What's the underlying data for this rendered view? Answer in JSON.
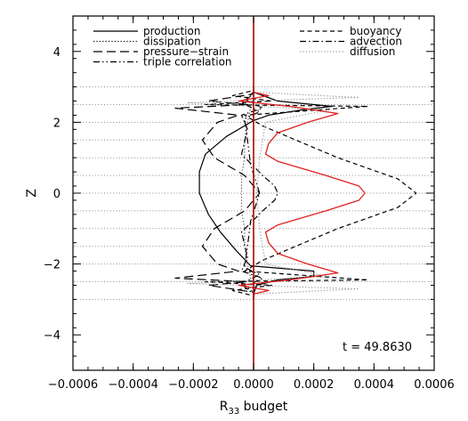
{
  "chart_data": {
    "type": "line",
    "title": "",
    "xlabel": "R",
    "xlabel_sub": "33",
    "xlabel_suffix": " budget",
    "ylabel": "Z",
    "xlim": [
      -0.0006,
      0.0006
    ],
    "ylim": [
      -5,
      5
    ],
    "x_ticks": [
      -0.0006,
      -0.0004,
      -0.0002,
      0.0,
      0.0002,
      0.0004,
      0.0006
    ],
    "x_tick_labels": [
      "−0.0006",
      "−0.0004",
      "−0.0002",
      "0.0000",
      "0.0002",
      "0.0004",
      "0.0006"
    ],
    "y_ticks": [
      -4,
      -2,
      0,
      2,
      4
    ],
    "y_tick_labels": [
      "−4",
      "−2",
      "0",
      "2",
      "4"
    ],
    "grid": "dotted horizontal reference lines at z = ±3, ±2.5, ±2, ±1.5, ±1, ±0.5, 0",
    "legend": {
      "placement": "top",
      "left_column": [
        {
          "label": "production",
          "style": "solid"
        },
        {
          "label": "dissipation",
          "style": "dotted"
        },
        {
          "label": "pressure−strain",
          "style": "longdash"
        },
        {
          "label": "triple correlation",
          "style": "dashdotdot"
        }
      ],
      "right_column": [
        {
          "label": "buoyancy",
          "style": "dashed"
        },
        {
          "label": "advection",
          "style": "dashdot"
        },
        {
          "label": "diffusion",
          "style": "dotted-gray"
        }
      ]
    },
    "annotation": "t = 49.8630",
    "colors": {
      "budget_sum": "#e02020",
      "vertical_ref": "#b00000",
      "diffusion": "#999999",
      "dissipation": "#555555"
    },
    "series": [
      {
        "name": "production",
        "style": "solid",
        "color": "#000000",
        "x": [
          0,
          0,
          1e-05,
          8e-05,
          0.0002,
          0.0002,
          -1e-05,
          -6e-05,
          -0.00011,
          -0.00015,
          -0.00018,
          -0.00018,
          -0.00016,
          -9e-05,
          0,
          5e-05,
          0.00016,
          0.00026,
          8e-05,
          0,
          0
        ],
        "y": [
          -3.0,
          -2.85,
          -2.6,
          -2.45,
          -2.35,
          -2.2,
          -2.05,
          -1.6,
          -1.1,
          -0.6,
          0,
          0.6,
          1.1,
          1.6,
          2.05,
          2.2,
          2.35,
          2.45,
          2.6,
          2.85,
          3.0
        ]
      },
      {
        "name": "dissipation",
        "style": "dotted",
        "color": "#555555",
        "x": [
          0,
          0,
          -1e-05,
          -2e-05,
          -3e-05,
          -3e-05,
          -4e-05,
          -4e-05,
          -4e-05,
          -3e-05,
          -3e-05,
          -2e-05,
          -1e-05,
          0,
          0
        ],
        "y": [
          -3.0,
          -2.7,
          -2.4,
          -2.0,
          -1.5,
          -1.0,
          -0.5,
          0,
          0.5,
          1.0,
          1.5,
          2.0,
          2.4,
          2.7,
          3.0
        ]
      },
      {
        "name": "pressure−strain",
        "style": "longdash",
        "color": "#000000",
        "x": [
          0,
          0,
          -0.00015,
          -2e-05,
          -0.00026,
          -5e-05,
          -0.00012,
          -0.00017,
          -0.00013,
          -3e-05,
          2e-05,
          -3e-05,
          -0.00013,
          -0.00017,
          -0.00012,
          -5e-05,
          -0.00026,
          -2e-05,
          -0.00015,
          0,
          0
        ],
        "y": [
          -3.0,
          -2.8,
          -2.6,
          -2.5,
          -2.4,
          -2.2,
          -2.0,
          -1.5,
          -1.0,
          -0.5,
          0,
          0.5,
          1.0,
          1.5,
          2.0,
          2.2,
          2.4,
          2.5,
          2.6,
          2.8,
          3.0
        ]
      },
      {
        "name": "triple correlation",
        "style": "dashdotdot",
        "color": "#000000",
        "x": [
          0,
          0,
          -4e-05,
          2e-05,
          -3e-05,
          -2e-05,
          -1e-05,
          2e-05,
          -1e-05,
          -2e-05,
          -3e-05,
          2e-05,
          -4e-05,
          0,
          0
        ],
        "y": [
          -3.0,
          -2.8,
          -2.55,
          -2.3,
          -2.1,
          -1.5,
          -0.8,
          0,
          0.8,
          1.5,
          2.1,
          2.3,
          2.55,
          2.8,
          3.0
        ]
      },
      {
        "name": "buoyancy",
        "style": "dashed",
        "color": "#000000",
        "x": [
          0,
          0,
          -7e-05,
          6e-05,
          -0.00016,
          0.00038,
          -3e-05,
          3e-05,
          0.00014,
          0.00028,
          0.00048,
          0.00054,
          0.00048,
          0.00028,
          0.00014,
          3e-05,
          -3e-05,
          0.00038,
          -0.00016,
          6e-05,
          -7e-05,
          0,
          0
        ],
        "y": [
          -3.0,
          -2.9,
          -2.75,
          -2.6,
          -2.5,
          -2.45,
          -2.2,
          -1.9,
          -1.5,
          -1.0,
          -0.4,
          0,
          0.4,
          1.0,
          1.5,
          1.9,
          2.2,
          2.45,
          2.5,
          2.6,
          2.75,
          2.9,
          3.0
        ]
      },
      {
        "name": "advection",
        "style": "dashdot",
        "color": "#000000",
        "x": [
          0,
          0,
          -3e-05,
          3e-05,
          -4e-05,
          -2e-05,
          -4e-05,
          3e-05,
          7e-05,
          8e-05,
          7e-05,
          3e-05,
          -4e-05,
          -2e-05,
          -4e-05,
          3e-05,
          -3e-05,
          0,
          0
        ],
        "y": [
          -3.0,
          -2.85,
          -2.65,
          -2.4,
          -2.2,
          -1.8,
          -1.1,
          -0.5,
          -0.2,
          0,
          0.2,
          0.5,
          1.1,
          1.8,
          2.2,
          2.4,
          2.65,
          2.85,
          3.0
        ]
      },
      {
        "name": "diffusion",
        "style": "dotted-gray",
        "color": "#999999",
        "x": [
          0,
          0,
          0.00035,
          -0.00022,
          0.00025,
          4e-05,
          2e-05,
          1e-05,
          2e-05,
          4e-05,
          0.00025,
          -0.00022,
          0.00035,
          0,
          0
        ],
        "y": [
          -3.0,
          -2.85,
          -2.7,
          -2.55,
          -2.35,
          -2.0,
          -1.0,
          0,
          1.0,
          2.0,
          2.35,
          2.55,
          2.7,
          2.85,
          3.0
        ]
      },
      {
        "style": "solid",
        "color": "#e02020",
        "x": [
          0,
          0,
          5e-05,
          -5e-05,
          0.00012,
          0.00028,
          0.00018,
          8e-05,
          5e-05,
          4e-05,
          8e-05,
          0.00024,
          0.00035,
          0.00037,
          0.00035,
          0.00024,
          8e-05,
          4e-05,
          5e-05,
          8e-05,
          0.00018,
          0.00028,
          0.00012,
          -5e-05,
          5e-05,
          0,
          0
        ],
        "y": [
          -3.0,
          -2.85,
          -2.75,
          -2.6,
          -2.45,
          -2.25,
          -2.0,
          -1.7,
          -1.4,
          -1.1,
          -0.9,
          -0.5,
          -0.2,
          0,
          0.2,
          0.5,
          0.9,
          1.1,
          1.4,
          1.7,
          2.0,
          2.25,
          2.45,
          2.6,
          2.75,
          2.85,
          3.0
        ]
      }
    ]
  }
}
